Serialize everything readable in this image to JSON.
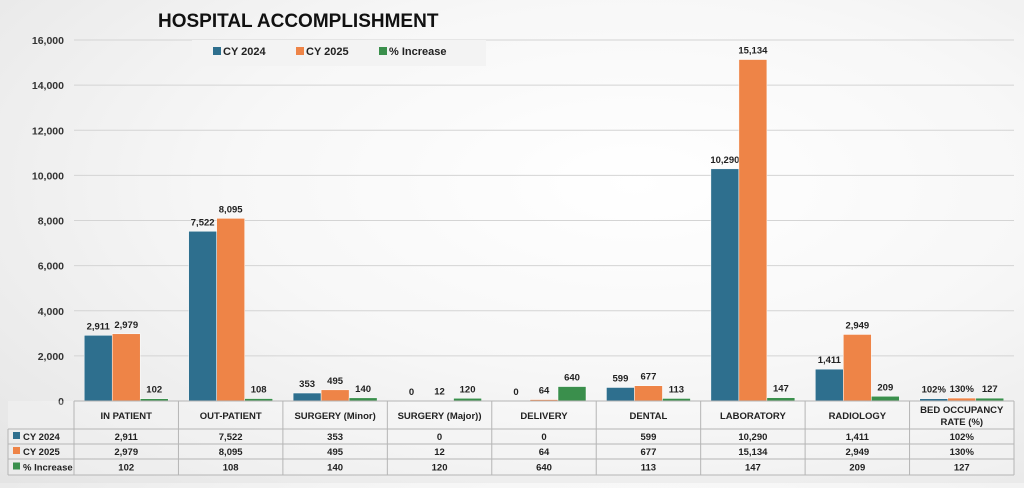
{
  "chart_data": {
    "type": "bar",
    "title": "HOSPITAL ACCOMPLISHMENT",
    "categories": [
      "IN PATIENT",
      "OUT-PATIENT",
      "SURGERY (Minor)",
      "SURGERY (Major))",
      "DELIVERY",
      "DENTAL",
      "LABORATORY",
      "RADIOLOGY",
      "BED OCCUPANCY RATE (%)"
    ],
    "series": [
      {
        "name": "CY 2024",
        "color": "#2e6f8e",
        "values": [
          2911,
          7522,
          353,
          0,
          0,
          599,
          10290,
          1411,
          102
        ],
        "labels": [
          "2,911",
          "7,522",
          "353",
          "0",
          "0",
          "599",
          "10,290",
          "1,411",
          "102%"
        ]
      },
      {
        "name": "CY 2025",
        "color": "#ee8447",
        "values": [
          2979,
          8095,
          495,
          12,
          64,
          677,
          15134,
          2949,
          130
        ],
        "labels": [
          "2,979",
          "8,095",
          "495",
          "12",
          "64",
          "677",
          "15,134",
          "2,949",
          "130%"
        ]
      },
      {
        "name": "% Increase",
        "color": "#3a8f4c",
        "values": [
          102,
          108,
          140,
          120,
          640,
          113,
          147,
          209,
          127
        ],
        "labels": [
          "102",
          "108",
          "140",
          "120",
          "640",
          "113",
          "147",
          "209",
          "127"
        ]
      }
    ],
    "yticks": [
      "0",
      "2,000",
      "4,000",
      "6,000",
      "8,000",
      "10,000",
      "12,000",
      "14,000",
      "16,000"
    ],
    "ylim": [
      0,
      16000
    ],
    "xlabel": "",
    "ylabel": "",
    "grid": true,
    "legend_position": "top",
    "data_table": true
  }
}
